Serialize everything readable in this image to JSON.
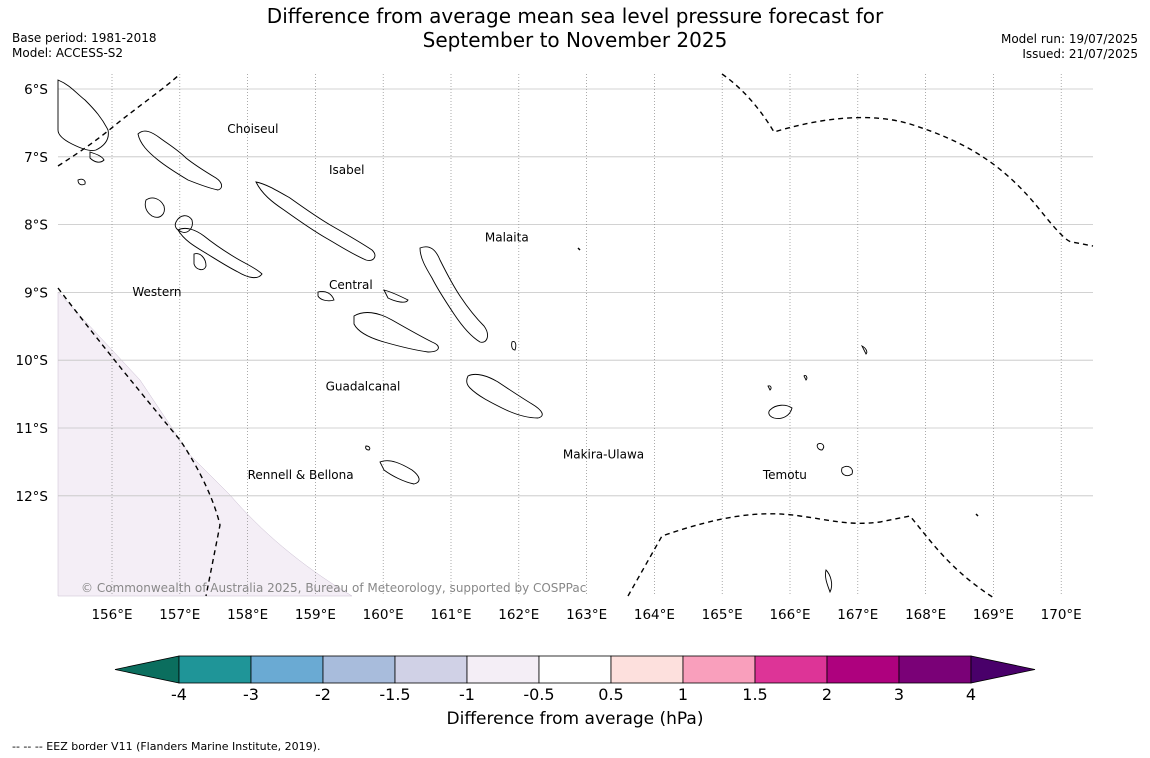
{
  "header": {
    "title_line1": "Difference from average mean sea level pressure forecast for",
    "title_line2": "September to November 2025",
    "base_period": "Base period: 1981-2018",
    "model": "Model: ACCESS-S2",
    "model_run": "Model run: 19/07/2025",
    "issued": "Issued: 21/07/2025"
  },
  "map": {
    "lat_labels": [
      "6°S",
      "7°S",
      "8°S",
      "9°S",
      "10°S",
      "11°S",
      "12°S"
    ],
    "lon_labels": [
      "156°E",
      "157°E",
      "158°E",
      "159°E",
      "160°E",
      "161°E",
      "162°E",
      "163°E",
      "164°E",
      "165°E",
      "166°E",
      "167°E",
      "168°E",
      "169°E",
      "170°E"
    ],
    "provinces": [
      "Choiseul",
      "Isabel",
      "Malaita",
      "Western",
      "Central",
      "Guadalcanal",
      "Makira-Ulawa",
      "Rennell & Bellona",
      "Temotu"
    ],
    "copyright": "© Commonwealth of Australia 2025, Bureau of Meteorology, supported by COSPPac",
    "shaded_anomaly_class": "-1 to -0.5"
  },
  "colorbar": {
    "ticks": [
      "-4",
      "-3",
      "-2",
      "-1.5",
      "-1",
      "-0.5",
      "0.5",
      "1",
      "1.5",
      "2",
      "3",
      "4"
    ],
    "colors": [
      "#0b6e5e",
      "#1f9598",
      "#6aaad3",
      "#a8bcdc",
      "#d0d1e6",
      "#f4eef6",
      "#ffffff",
      "#fde0dd",
      "#f99fbc",
      "#dd3497",
      "#ae017e",
      "#7a0177",
      "#49006a"
    ],
    "label": "Difference from average (hPa)"
  },
  "footnote": "--  --  -- EEZ border V11 (Flanders Marine Institute, 2019)."
}
